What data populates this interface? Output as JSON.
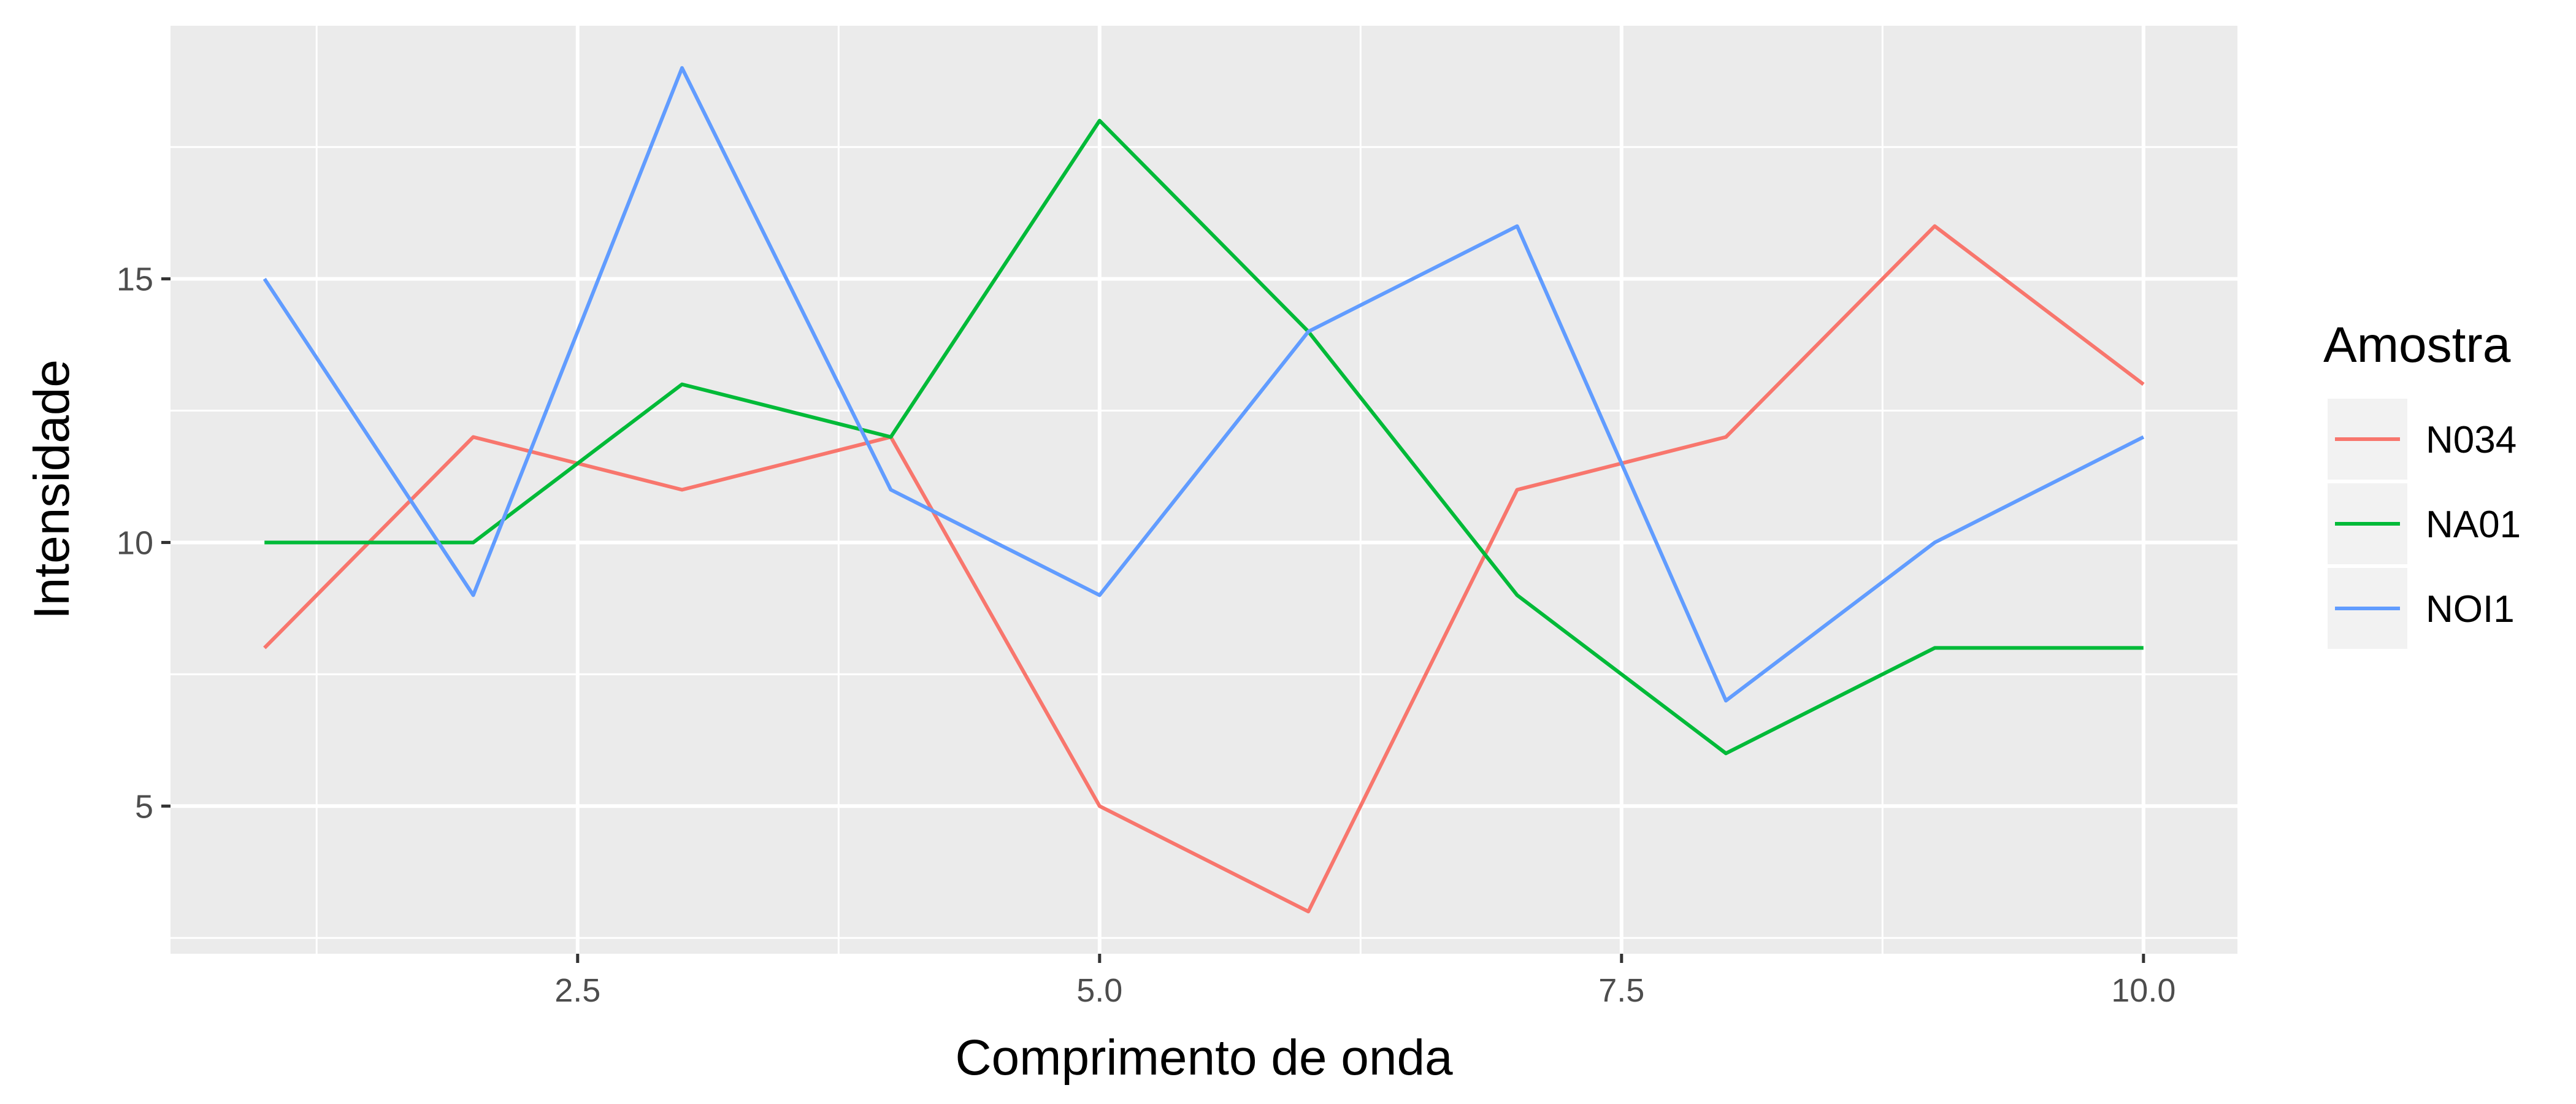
{
  "chart_data": {
    "type": "line",
    "title": "",
    "xlabel": "Comprimento de onda",
    "ylabel": "Intensidade",
    "xlim": [
      0.55,
      10.45
    ],
    "ylim": [
      2.2,
      19.8
    ],
    "x_ticks": [
      2.5,
      5.0,
      7.5,
      10.0
    ],
    "x_tick_labels": [
      "2.5",
      "5.0",
      "7.5",
      "10.0"
    ],
    "x_minor_ticks": [
      1.25,
      3.75,
      6.25,
      8.75
    ],
    "y_ticks": [
      5,
      10,
      15
    ],
    "y_tick_labels": [
      "5",
      "10",
      "15"
    ],
    "y_minor_ticks": [
      2.5,
      7.5,
      12.5,
      17.5
    ],
    "grid": true,
    "legend": {
      "title": "Amostra",
      "position": "right"
    },
    "x": [
      1,
      2,
      3,
      4,
      5,
      6,
      7,
      8,
      9,
      10
    ],
    "series": [
      {
        "name": "N034",
        "color": "#F8766D",
        "values": [
          8,
          12,
          11,
          12,
          5,
          3,
          11,
          12,
          16,
          13
        ]
      },
      {
        "name": "NA01",
        "color": "#00BA38",
        "values": [
          10,
          10,
          13,
          12,
          18,
          14,
          9,
          6,
          8,
          8
        ]
      },
      {
        "name": "NOI1",
        "color": "#619CFF",
        "values": [
          15,
          9,
          19,
          11,
          9,
          14,
          16,
          7,
          10,
          12
        ]
      }
    ]
  }
}
